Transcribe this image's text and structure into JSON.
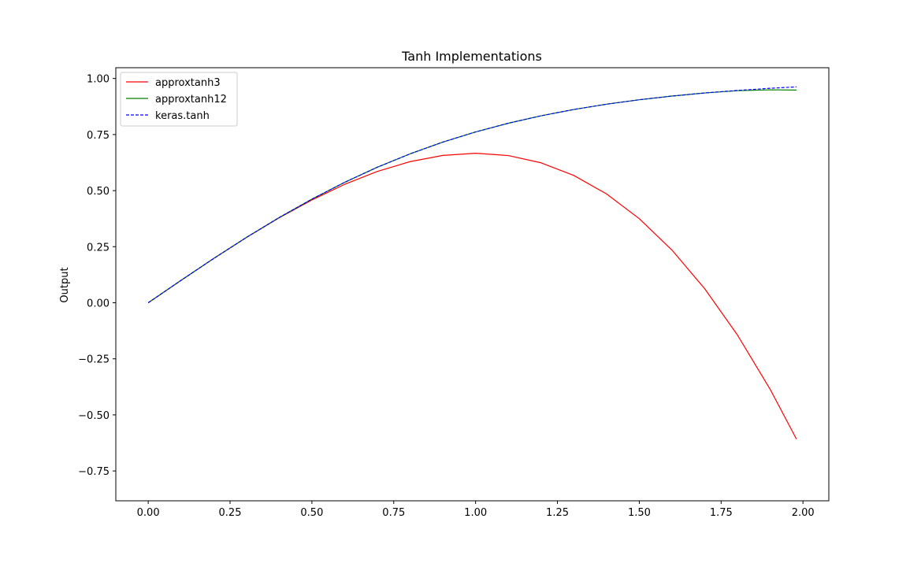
{
  "chart_data": {
    "type": "line",
    "title": "Tanh Implementations",
    "xlabel": "",
    "ylabel": "Output",
    "xlim": [
      -0.099,
      2.079
    ],
    "ylim": [
      -0.883,
      1.048
    ],
    "xticks": [
      0.0,
      0.25,
      0.5,
      0.75,
      1.0,
      1.25,
      1.5,
      1.75,
      2.0
    ],
    "xtick_labels": [
      "0.00",
      "0.25",
      "0.50",
      "0.75",
      "1.00",
      "1.25",
      "1.50",
      "1.75",
      "2.00"
    ],
    "yticks": [
      -0.75,
      -0.5,
      -0.25,
      0.0,
      0.25,
      0.5,
      0.75,
      1.0
    ],
    "ytick_labels": [
      "−0.75",
      "−0.50",
      "−0.25",
      "0.00",
      "0.25",
      "0.50",
      "0.75",
      "1.00"
    ],
    "grid": false,
    "legend_position": "upper-left",
    "series": [
      {
        "name": "approxtanh3",
        "color": "#ff0000",
        "style": "solid",
        "x": [
          0.0,
          0.1,
          0.2,
          0.3,
          0.4,
          0.5,
          0.6,
          0.7,
          0.8,
          0.9,
          1.0,
          1.1,
          1.2,
          1.3,
          1.4,
          1.5,
          1.6,
          1.7,
          1.8,
          1.9,
          1.98
        ],
        "y": [
          0.0,
          0.0997,
          0.1973,
          0.291,
          0.3787,
          0.4583,
          0.528,
          0.5857,
          0.6293,
          0.657,
          0.6667,
          0.6563,
          0.624,
          0.5677,
          0.4853,
          0.375,
          0.2347,
          0.0623,
          -0.144,
          -0.3863,
          -0.6074
        ]
      },
      {
        "name": "approxtanh12",
        "color": "#008000",
        "style": "solid",
        "x": [
          0.0,
          0.1,
          0.2,
          0.3,
          0.4,
          0.5,
          0.6,
          0.7,
          0.8,
          0.9,
          1.0,
          1.1,
          1.2,
          1.3,
          1.4,
          1.5,
          1.6,
          1.7,
          1.8,
          1.9,
          1.98
        ],
        "y": [
          0.0,
          0.0997,
          0.1974,
          0.2913,
          0.3799,
          0.4621,
          0.537,
          0.6044,
          0.664,
          0.7163,
          0.7616,
          0.8005,
          0.8337,
          0.8617,
          0.8854,
          0.9051,
          0.9217,
          0.9354,
          0.9455,
          0.9495,
          0.9485
        ]
      },
      {
        "name": "keras.tanh",
        "color": "#0000ff",
        "style": "dashed",
        "x": [
          0.0,
          0.1,
          0.2,
          0.3,
          0.4,
          0.5,
          0.6,
          0.7,
          0.8,
          0.9,
          1.0,
          1.1,
          1.2,
          1.3,
          1.4,
          1.5,
          1.6,
          1.7,
          1.8,
          1.9,
          1.98
        ],
        "y": [
          0.0,
          0.0997,
          0.1974,
          0.2913,
          0.3799,
          0.4621,
          0.537,
          0.6044,
          0.664,
          0.7163,
          0.7616,
          0.8005,
          0.8337,
          0.8617,
          0.8854,
          0.9051,
          0.9217,
          0.9354,
          0.9468,
          0.9562,
          0.9626
        ]
      }
    ]
  }
}
